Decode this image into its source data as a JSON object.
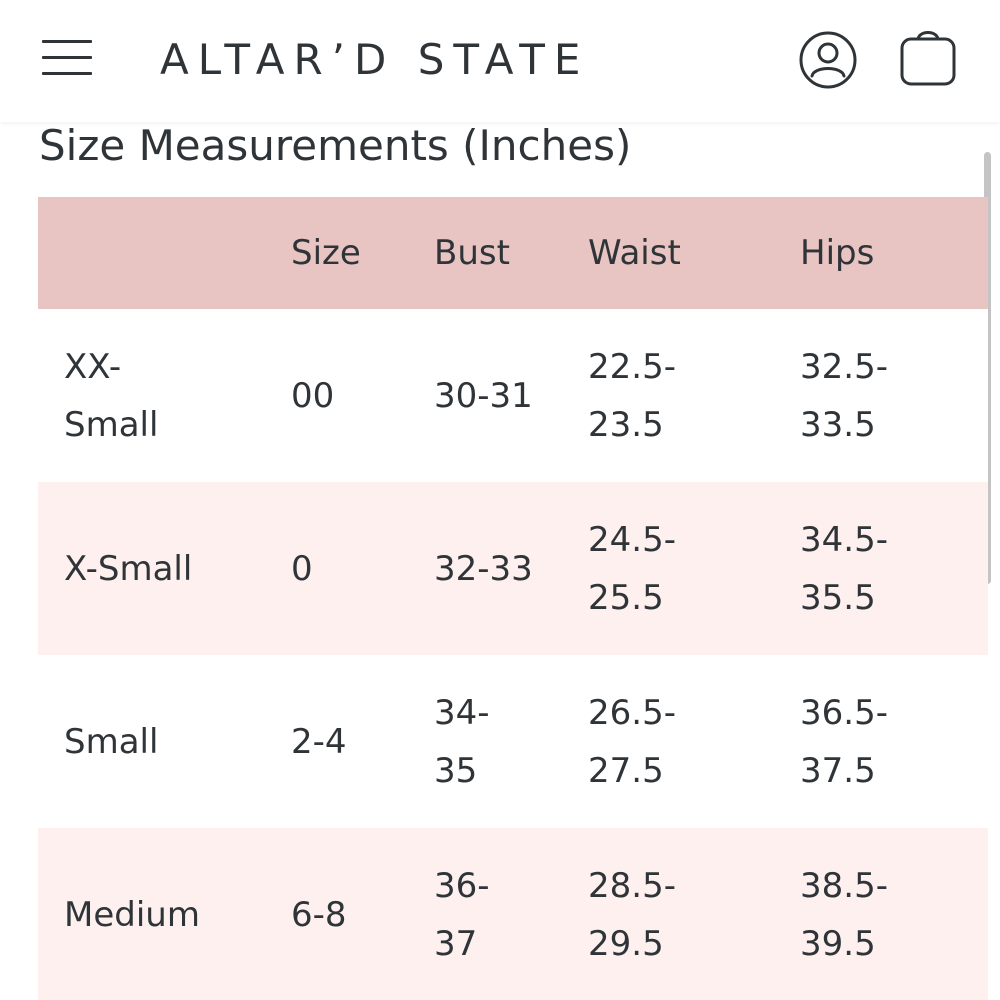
{
  "header": {
    "logo": "ALTAR’D STATE",
    "menu_icon": "hamburger-menu-icon",
    "account_icon": "user-account-icon",
    "bag_icon": "shopping-bag-icon"
  },
  "title": "Size Measurements (Inches)",
  "table": {
    "headers": [
      "",
      "Size",
      "Bust",
      "Waist",
      "Hips"
    ],
    "rows": [
      {
        "name": [
          "XX-",
          "Small"
        ],
        "size": "00",
        "bust": [
          "30-31"
        ],
        "waist": [
          "22.5-",
          "23.5"
        ],
        "hips": [
          "32.5-",
          "33.5"
        ]
      },
      {
        "name": [
          "X-Small"
        ],
        "size": "0",
        "bust": [
          "32-33"
        ],
        "waist": [
          "24.5-",
          "25.5"
        ],
        "hips": [
          "34.5-",
          "35.5"
        ]
      },
      {
        "name": [
          "Small"
        ],
        "size": "2-4",
        "bust": [
          "34-",
          "35"
        ],
        "waist": [
          "26.5-",
          "27.5"
        ],
        "hips": [
          "36.5-",
          "37.5"
        ]
      },
      {
        "name": [
          "Medium"
        ],
        "size": "6-8",
        "bust": [
          "36-",
          "37"
        ],
        "waist": [
          "28.5-",
          "29.5"
        ],
        "hips": [
          "38.5-",
          "39.5"
        ]
      }
    ]
  },
  "colors": {
    "header_row": "#e8c4c3",
    "alt_row": "#fdf0ef",
    "text": "#2f3438"
  }
}
